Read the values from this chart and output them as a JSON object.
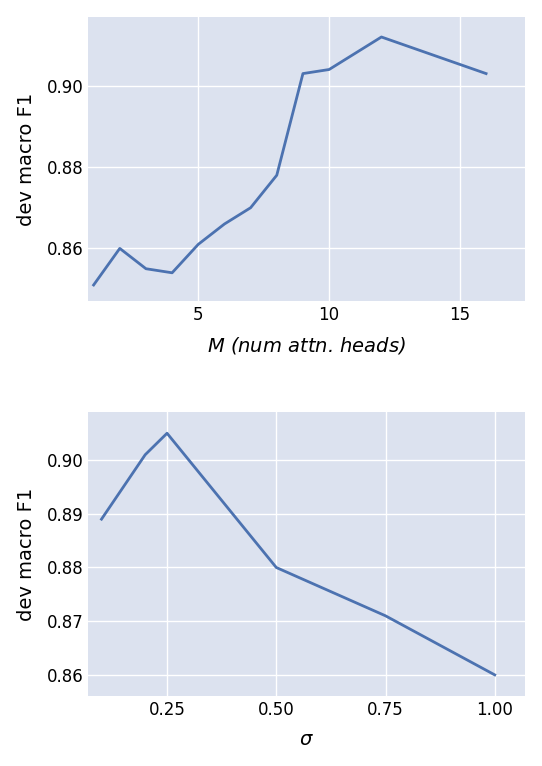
{
  "plot1": {
    "x": [
      1,
      2,
      3,
      4,
      5,
      6,
      7,
      8,
      9,
      10,
      12,
      16
    ],
    "y": [
      0.851,
      0.86,
      0.855,
      0.854,
      0.861,
      0.866,
      0.87,
      0.878,
      0.903,
      0.904,
      0.912,
      0.903
    ],
    "xlabel": "$M$ (num attn. heads)",
    "ylabel": "dev macro F1",
    "xticks": [
      5,
      10,
      15
    ],
    "yticks": [
      0.86,
      0.88,
      0.9
    ],
    "ylim": [
      0.847,
      0.917
    ],
    "xlim": [
      0.8,
      17.5
    ]
  },
  "plot2": {
    "x": [
      0.1,
      0.2,
      0.25,
      0.5,
      0.75,
      1.0
    ],
    "y": [
      0.889,
      0.901,
      0.905,
      0.88,
      0.871,
      0.86
    ],
    "xlabel": "$\\sigma$",
    "ylabel": "dev macro F1",
    "xticks": [
      0.25,
      0.5,
      0.75,
      1.0
    ],
    "yticks": [
      0.86,
      0.87,
      0.88,
      0.89,
      0.9
    ],
    "ylim": [
      0.856,
      0.909
    ],
    "xlim": [
      0.07,
      1.07
    ]
  },
  "line_color": "#4c72b0",
  "line_width": 2.0,
  "bg_color": "#dce2ef",
  "fig_bg_color": "#ffffff",
  "grid_color": "#ffffff",
  "label_fontsize": 14,
  "tick_fontsize": 12
}
